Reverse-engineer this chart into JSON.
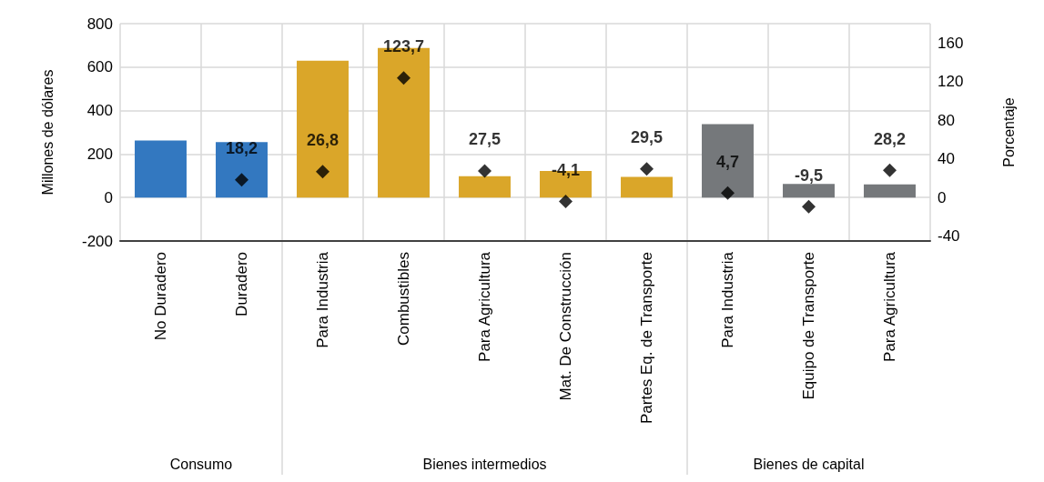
{
  "chart_data": {
    "type": "bar",
    "categories": [
      "No Duradero",
      "Duradero",
      "Para Industria",
      "Combustibles",
      "Para Agricultura",
      "Mat. De Construcción",
      "Partes Eq. de Transporte",
      "Para Industria",
      "Equipo de Transporte",
      "Para Agricultura"
    ],
    "ylabel": "Millones de dólares",
    "y2label": "Porcentaje",
    "series": [
      {
        "colors": [
          "#3378c0",
          "#3378c0",
          "#daa629",
          "#daa629",
          "#daa629",
          "#daa629",
          "#daa629",
          "#75787b",
          "#75787b",
          "#75787b"
        ],
        "values": [
          262,
          255,
          630,
          688,
          98,
          122,
          95,
          338,
          63,
          60
        ]
      },
      {
        "type": "scatter",
        "axis": "y2",
        "color": "#000000",
        "marker": "diamond",
        "values": [
          null,
          18.2,
          26.8,
          123.7,
          27.5,
          -4.1,
          29.5,
          4.7,
          -9.5,
          28.2
        ],
        "value_labels": [
          null,
          "18,2",
          "26,8",
          "123,7",
          "27,5",
          "-4,1",
          "29,5",
          "4,7",
          "-9,5",
          "28,2"
        ]
      }
    ],
    "annotations": [
      "Consumo",
      "Bienes intermedios",
      "Bienes de capital"
    ],
    "ylim": [
      -200,
      800
    ],
    "yticks": [
      -200,
      0,
      200,
      400,
      600,
      800
    ],
    "y2lim": [
      -45,
      180
    ],
    "y2ticks": [
      -40,
      0,
      40,
      80,
      120,
      160
    ],
    "grid": true
  }
}
